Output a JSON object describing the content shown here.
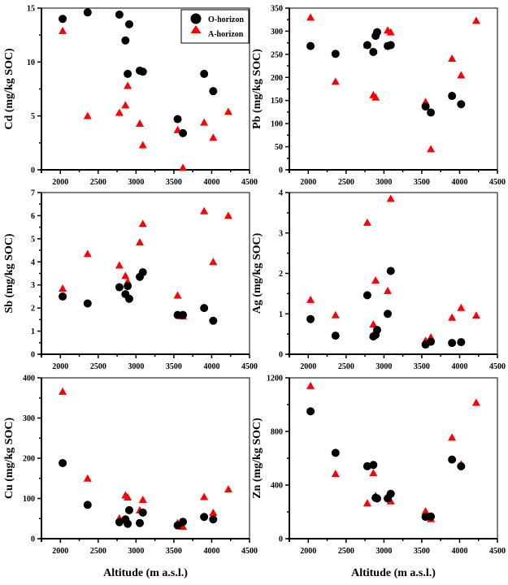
{
  "chart_data": [
    {
      "type": "scatter",
      "ylabel": "Cd (mg/kg SOC)",
      "xlabel": "",
      "xlim": [
        1750,
        4500
      ],
      "ylim": [
        0,
        15
      ],
      "xticks": [
        2000,
        2500,
        3000,
        3500,
        4000,
        4500
      ],
      "yticks": [
        0,
        5,
        10,
        15
      ],
      "legend": "top-right",
      "series": [
        {
          "name": "O-horizon",
          "marker": "circle",
          "color": "#000000",
          "x": [
            2030,
            2360,
            2780,
            2860,
            2890,
            2910,
            3050,
            3090,
            3550,
            3620,
            3900,
            4020
          ],
          "y": [
            14.0,
            14.6,
            14.4,
            12.0,
            8.9,
            13.5,
            9.2,
            9.1,
            4.7,
            3.4,
            8.9,
            7.3
          ]
        },
        {
          "name": "A-horizon",
          "marker": "triangle",
          "color": "#ff0000",
          "x": [
            2030,
            2360,
            2780,
            2860,
            2890,
            3050,
            3090,
            3550,
            3620,
            3900,
            4020,
            4220
          ],
          "y": [
            12.9,
            5.0,
            5.3,
            6.0,
            7.8,
            4.3,
            2.3,
            3.7,
            0.2,
            4.4,
            3.0,
            5.4
          ]
        }
      ]
    },
    {
      "type": "scatter",
      "ylabel": "Pb (mg/kg SOC)",
      "xlabel": "",
      "xlim": [
        1750,
        4500
      ],
      "ylim": [
        0,
        350
      ],
      "xticks": [
        2000,
        2500,
        3000,
        3500,
        4000,
        4500
      ],
      "yticks": [
        0,
        50,
        100,
        150,
        200,
        250,
        300,
        350
      ],
      "series": [
        {
          "marker": "circle",
          "color": "#000000",
          "x": [
            2030,
            2360,
            2780,
            2860,
            2890,
            2910,
            3050,
            3090,
            3550,
            3620,
            3900,
            4020
          ],
          "y": [
            268,
            251,
            270,
            255,
            290,
            298,
            268,
            270,
            137,
            124,
            160,
            142
          ]
        },
        {
          "marker": "triangle",
          "color": "#ff0000",
          "x": [
            2030,
            2360,
            2780,
            2860,
            2890,
            3050,
            3090,
            3550,
            3620,
            3900,
            4020,
            4220
          ],
          "y": [
            330,
            191,
            270,
            162,
            157,
            302,
            298,
            147,
            45,
            241,
            205,
            323
          ]
        }
      ]
    },
    {
      "type": "scatter",
      "ylabel": "Sb (mg/kg SOC)",
      "xlabel": "",
      "xlim": [
        1750,
        4500
      ],
      "ylim": [
        0,
        7
      ],
      "xticks": [
        2000,
        2500,
        3000,
        3500,
        4000,
        4500
      ],
      "yticks": [
        0,
        1,
        2,
        3,
        4,
        5,
        6,
        7
      ],
      "series": [
        {
          "marker": "circle",
          "color": "#000000",
          "x": [
            2030,
            2360,
            2780,
            2860,
            2890,
            2910,
            3050,
            3090,
            3550,
            3620,
            3900,
            4020
          ],
          "y": [
            2.5,
            2.2,
            2.9,
            2.6,
            2.95,
            2.4,
            3.35,
            3.55,
            1.7,
            1.7,
            2.0,
            1.45
          ]
        },
        {
          "marker": "triangle",
          "color": "#ff0000",
          "x": [
            2030,
            2360,
            2780,
            2860,
            2890,
            3050,
            3090,
            3550,
            3620,
            3900,
            4020,
            4220
          ],
          "y": [
            2.85,
            4.35,
            3.85,
            3.4,
            3.15,
            4.85,
            5.65,
            2.55,
            1.65,
            6.2,
            4.0,
            6.0
          ]
        }
      ]
    },
    {
      "type": "scatter",
      "ylabel": "Ag (mg/kg SOC)",
      "xlabel": "",
      "xlim": [
        1750,
        4500
      ],
      "ylim": [
        0,
        4
      ],
      "xticks": [
        2000,
        2500,
        3000,
        3500,
        4000,
        4500
      ],
      "yticks": [
        0,
        1,
        2,
        3,
        4
      ],
      "series": [
        {
          "marker": "circle",
          "color": "#000000",
          "x": [
            2030,
            2360,
            2780,
            2860,
            2890,
            2910,
            3050,
            3090,
            3550,
            3620,
            3900,
            4020
          ],
          "y": [
            0.87,
            0.46,
            1.46,
            0.44,
            0.48,
            0.6,
            1.0,
            2.06,
            0.24,
            0.31,
            0.28,
            0.3
          ]
        },
        {
          "marker": "triangle",
          "color": "#ff0000",
          "x": [
            2030,
            2360,
            2780,
            2860,
            2890,
            3050,
            3090,
            3550,
            3620,
            3900,
            4020,
            4220
          ],
          "y": [
            1.35,
            0.97,
            3.26,
            0.74,
            1.83,
            1.57,
            3.85,
            0.34,
            0.42,
            0.91,
            1.15,
            0.96
          ]
        }
      ]
    },
    {
      "type": "scatter",
      "ylabel": "Cu (mg/kg SOC)",
      "xlabel": "Altitude (m a.s.l.)",
      "xlim": [
        1750,
        4500
      ],
      "ylim": [
        0,
        400
      ],
      "xticks": [
        2000,
        2500,
        3000,
        3500,
        4000,
        4500
      ],
      "yticks": [
        0,
        100,
        200,
        300,
        400
      ],
      "series": [
        {
          "marker": "circle",
          "color": "#000000",
          "x": [
            2030,
            2360,
            2780,
            2860,
            2890,
            2910,
            3050,
            3090,
            3550,
            3620,
            3900,
            4020
          ],
          "y": [
            188,
            84,
            41,
            48,
            37,
            71,
            39,
            65,
            33,
            42,
            54,
            48
          ]
        },
        {
          "marker": "triangle",
          "color": "#ff0000",
          "x": [
            2030,
            2360,
            2780,
            2860,
            2890,
            3050,
            3090,
            3550,
            3620,
            3900,
            4020,
            4220
          ],
          "y": [
            366,
            150,
            51,
            108,
            103,
            71,
            97,
            39,
            30,
            104,
            65,
            123
          ]
        }
      ]
    },
    {
      "type": "scatter",
      "ylabel": "Zn (mg/kg SOC)",
      "xlabel": "Altitude (m a.s.l.)",
      "xlim": [
        1750,
        4500
      ],
      "ylim": [
        0,
        1200
      ],
      "xticks": [
        2000,
        2500,
        3000,
        3500,
        4000,
        4500
      ],
      "yticks": [
        0,
        400,
        800,
        1200
      ],
      "series": [
        {
          "marker": "circle",
          "color": "#000000",
          "x": [
            2030,
            2360,
            2780,
            2860,
            2890,
            2910,
            3050,
            3090,
            3550,
            3620,
            3900,
            4020
          ],
          "y": [
            950,
            640,
            540,
            550,
            305,
            300,
            300,
            335,
            163,
            165,
            590,
            540
          ]
        },
        {
          "marker": "triangle",
          "color": "#ff0000",
          "x": [
            2030,
            2360,
            2780,
            2860,
            2890,
            3050,
            3090,
            3550,
            3620,
            3900,
            4020,
            4220
          ],
          "y": [
            1140,
            485,
            265,
            490,
            320,
            320,
            280,
            205,
            148,
            755,
            555,
            1015
          ]
        }
      ]
    }
  ]
}
